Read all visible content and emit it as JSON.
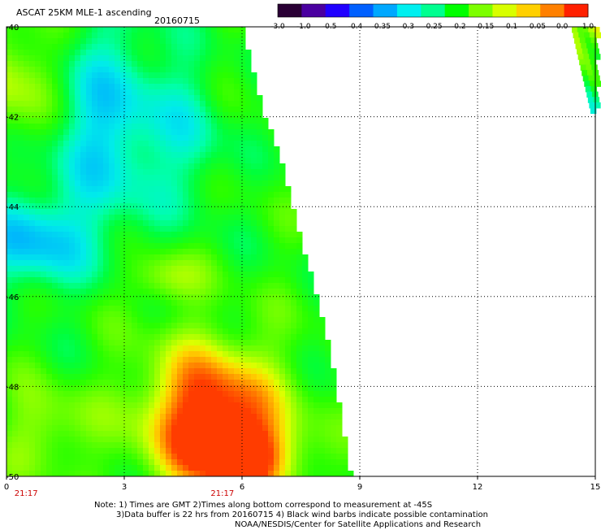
{
  "header": {
    "title": "ASCAT 25KM MLE-1 ascending",
    "date": "20160715"
  },
  "colorbar": {
    "labels": [
      "-3.0",
      "-1.0",
      "-0.5",
      "-0.4",
      "-0.35",
      "-0.3",
      "-0.25",
      "-0.2",
      "-0.15",
      "-0.1",
      "-0.05",
      "0.0",
      "1.0"
    ],
    "colors": [
      "#2a0035",
      "#4a00a0",
      "#2000ff",
      "#0060ff",
      "#00a8ff",
      "#00f0f0",
      "#00ff90",
      "#00ff00",
      "#7cff00",
      "#d8ff00",
      "#ffd000",
      "#ff8000",
      "#ff2000"
    ]
  },
  "chart_data": {
    "type": "heatmap",
    "title": "ASCAT 25KM MLE-1 ascending",
    "x_ticks": [
      "0",
      "3",
      "6",
      "9",
      "12",
      "15"
    ],
    "y_ticks": [
      "-40",
      "-42",
      "-44",
      "-46",
      "-48",
      "-50"
    ],
    "xlim": [
      0,
      15
    ],
    "ylim": [
      -50,
      -40
    ],
    "grid": true,
    "time_labels": [
      {
        "x": 0.5,
        "text": "21:17"
      },
      {
        "x": 5.5,
        "text": "21:17"
      }
    ],
    "swath_main": {
      "lon_range": [
        0,
        8.8
      ],
      "right_edge": [
        [
          -40,
          6.0
        ],
        [
          -41,
          6.3
        ],
        [
          -42,
          6.6
        ],
        [
          -43,
          7.0
        ],
        [
          -44,
          7.3
        ],
        [
          -45,
          7.6
        ],
        [
          -46,
          7.9
        ],
        [
          -47,
          8.2
        ],
        [
          -48,
          8.4
        ],
        [
          -49,
          8.6
        ],
        [
          -50,
          8.8
        ]
      ]
    },
    "swath_east": {
      "lon_range": [
        14.4,
        15.0
      ],
      "lat_range": [
        -41.9,
        -40.0
      ]
    },
    "value_range": [
      -0.35,
      0.0
    ]
  },
  "notes": {
    "line1": "Note: 1) Times are GMT 2)Times along bottom correspond to measurement at -45S",
    "line2": "3)Data buffer is 22 hrs from 20160715 4) Black wind barbs indicate possible contamination",
    "line3": "NOAA/NESDIS/Center for Satellite Applications and Research"
  }
}
